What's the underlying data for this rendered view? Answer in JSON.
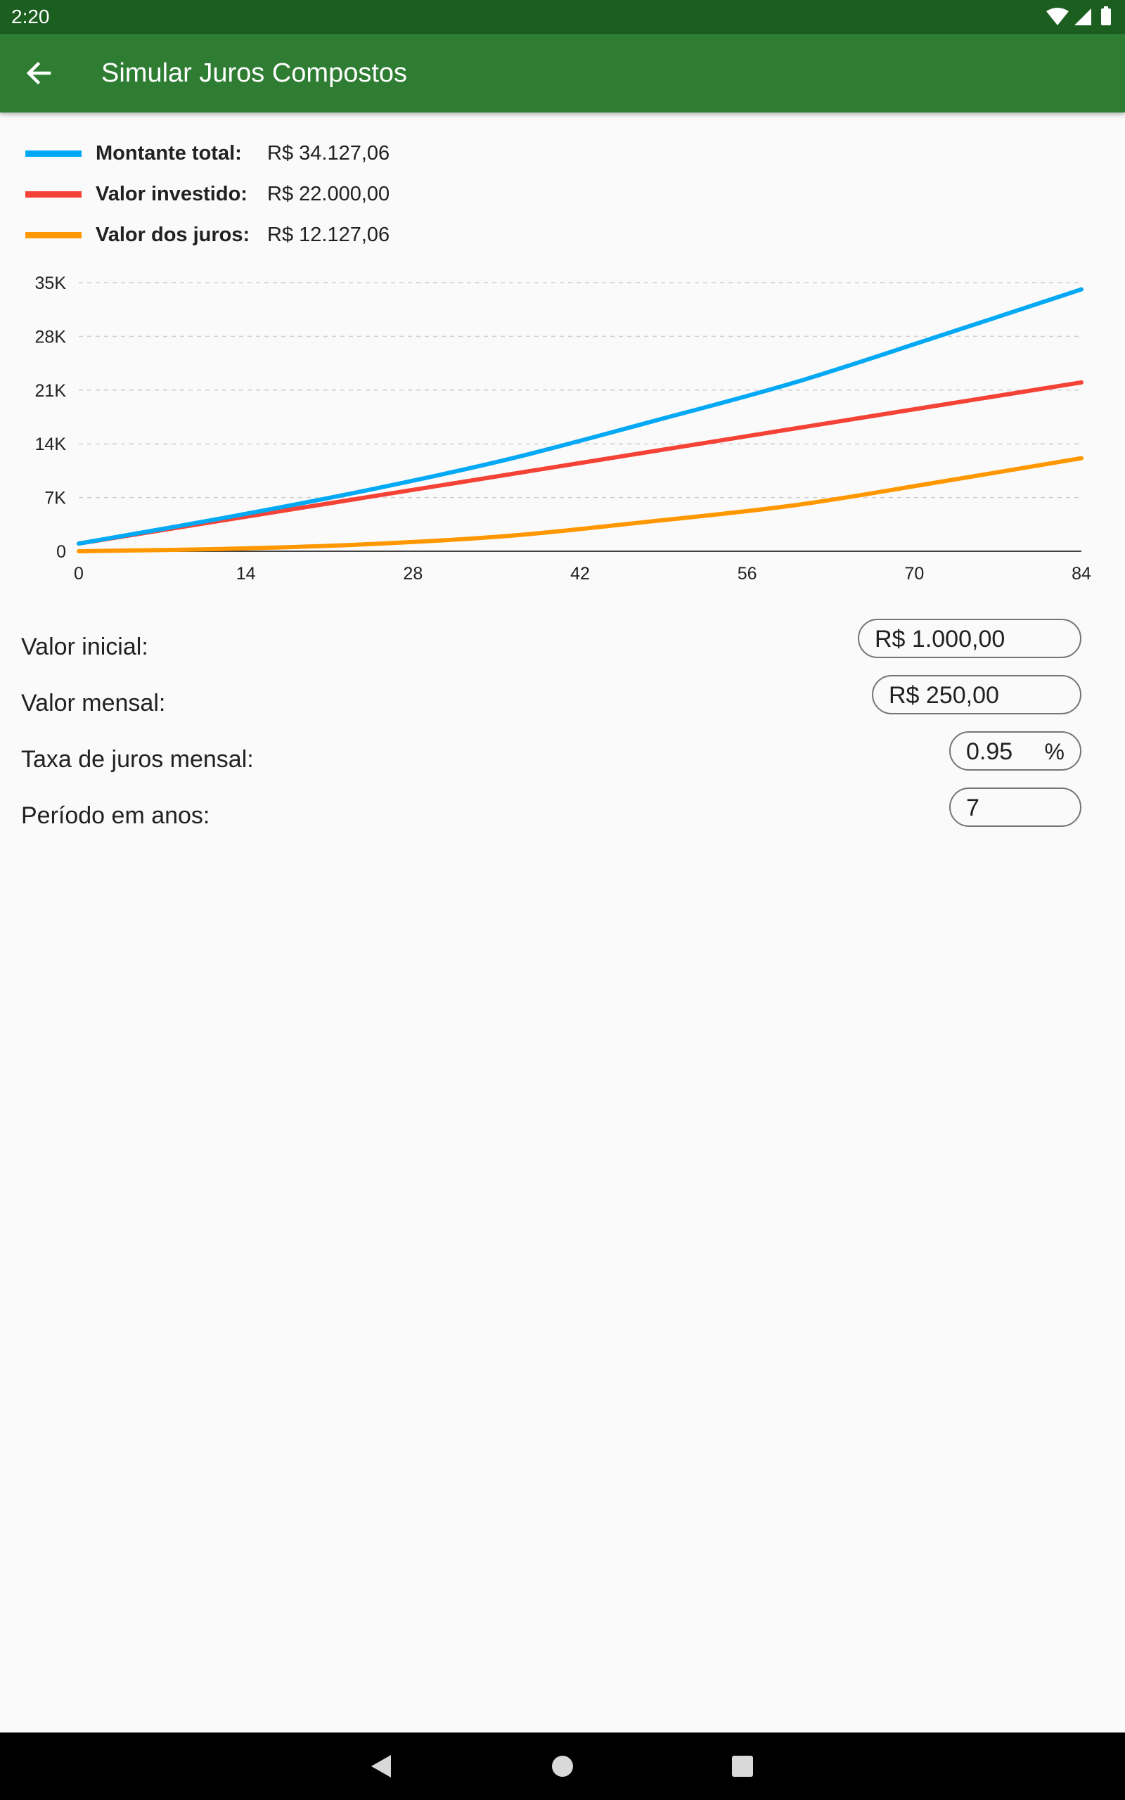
{
  "status_bar": {
    "time": "2:20",
    "icons": [
      "wifi-icon",
      "cell-signal-icon",
      "battery-icon"
    ]
  },
  "app_bar": {
    "title": "Simular Juros Compostos",
    "back_icon": "arrow-back-icon",
    "color": "#2e7d32"
  },
  "legend": [
    {
      "label": "Montante total:",
      "value": "R$ 34.127,06",
      "color": "#03a9f4"
    },
    {
      "label": "Valor investido:",
      "value": "R$ 22.000,00",
      "color": "#f44336"
    },
    {
      "label": "Valor dos juros:",
      "value": "R$ 12.127,06",
      "color": "#ff9800"
    }
  ],
  "chart_data": {
    "type": "line",
    "title": "",
    "xlabel": "",
    "ylabel": "",
    "xlim": [
      0,
      84
    ],
    "ylim": [
      0,
      35000
    ],
    "x_ticks": [
      "0",
      "14",
      "28",
      "42",
      "56",
      "70",
      "84"
    ],
    "y_ticks": [
      "0",
      "7K",
      "14K",
      "21K",
      "28K",
      "35K"
    ],
    "grid": "horizontal-dashed",
    "x": [
      0,
      12,
      24,
      36,
      48,
      60,
      72,
      84
    ],
    "series": [
      {
        "name": "Montante total",
        "color": "#03a9f4",
        "values": [
          1000,
          4300,
          7900,
          12000,
          16900,
          22000,
          28000,
          34127
        ]
      },
      {
        "name": "Valor investido",
        "color": "#f44336",
        "values": [
          1000,
          4000,
          7000,
          10000,
          13000,
          16000,
          19000,
          22000
        ]
      },
      {
        "name": "Valor dos juros",
        "color": "#ff9800",
        "values": [
          0,
          300,
          900,
          2000,
          3900,
          6000,
          9000,
          12127
        ]
      }
    ]
  },
  "form": {
    "initial_value": {
      "label": "Valor inicial:",
      "value": "R$ 1.000,00"
    },
    "monthly_value": {
      "label": "Valor mensal:",
      "value": "R$ 250,00"
    },
    "monthly_rate": {
      "label": "Taxa de juros mensal:",
      "value": "0.95",
      "suffix": "%"
    },
    "period_years": {
      "label": "Período em anos:",
      "value": "7"
    }
  },
  "nav_bar": {
    "buttons": [
      "back-triangle-icon",
      "home-circle-icon",
      "recents-square-icon"
    ]
  }
}
